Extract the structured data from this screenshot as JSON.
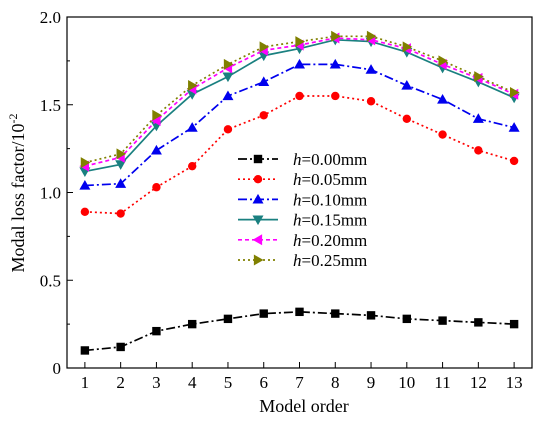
{
  "chart_data": {
    "type": "line",
    "xlabel": "Model order",
    "ylabel_main": "Modal loss factor/10",
    "ylabel_sup": "-2",
    "xlim": [
      0.5,
      13.5
    ],
    "ylim": [
      0,
      2.0
    ],
    "xticks": [
      1,
      2,
      3,
      4,
      5,
      6,
      7,
      8,
      9,
      10,
      11,
      12,
      13
    ],
    "yticks": [
      0,
      0.5,
      1.0,
      1.5,
      2.0
    ],
    "ytick_labels": [
      "0",
      "0.5",
      "1.0",
      "1.5",
      "2.0"
    ],
    "grid": false,
    "legend_position": "center",
    "x": [
      1,
      2,
      3,
      4,
      5,
      6,
      7,
      8,
      9,
      10,
      11,
      12,
      13
    ],
    "series": [
      {
        "legend_var": "h",
        "legend_text": "=0.00mm",
        "color": "#000000",
        "dash": "dash-dot",
        "marker": "square",
        "values": [
          0.1,
          0.12,
          0.21,
          0.25,
          0.28,
          0.31,
          0.32,
          0.31,
          0.3,
          0.28,
          0.27,
          0.26,
          0.25
        ]
      },
      {
        "legend_var": "h",
        "legend_text": "=0.05mm",
        "color": "#ff0000",
        "dash": "dot",
        "marker": "circle",
        "values": [
          0.89,
          0.88,
          1.03,
          1.15,
          1.36,
          1.44,
          1.55,
          1.55,
          1.52,
          1.42,
          1.33,
          1.24,
          1.18
        ]
      },
      {
        "legend_var": "h",
        "legend_text": "=0.10mm",
        "color": "#0000ee",
        "dash": "dash-dot",
        "marker": "triangle-up",
        "values": [
          1.04,
          1.05,
          1.24,
          1.37,
          1.55,
          1.63,
          1.73,
          1.73,
          1.7,
          1.61,
          1.53,
          1.42,
          1.37
        ]
      },
      {
        "legend_var": "h",
        "legend_text": "=0.15mm",
        "color": "#1a8080",
        "dash": "solid",
        "marker": "triangle-down",
        "values": [
          1.12,
          1.16,
          1.38,
          1.56,
          1.66,
          1.78,
          1.82,
          1.87,
          1.86,
          1.8,
          1.71,
          1.63,
          1.54
        ]
      },
      {
        "legend_var": "h",
        "legend_text": "=0.20mm",
        "color": "#ff00ff",
        "dash": "short-dash",
        "marker": "triangle-left",
        "values": [
          1.15,
          1.2,
          1.41,
          1.59,
          1.71,
          1.81,
          1.84,
          1.88,
          1.87,
          1.82,
          1.73,
          1.65,
          1.56
        ]
      },
      {
        "legend_var": "h",
        "legend_text": "=0.25mm",
        "color": "#808000",
        "dash": "dot",
        "marker": "triangle-right",
        "values": [
          1.17,
          1.22,
          1.44,
          1.61,
          1.73,
          1.83,
          1.86,
          1.89,
          1.89,
          1.83,
          1.75,
          1.66,
          1.57
        ]
      }
    ]
  }
}
